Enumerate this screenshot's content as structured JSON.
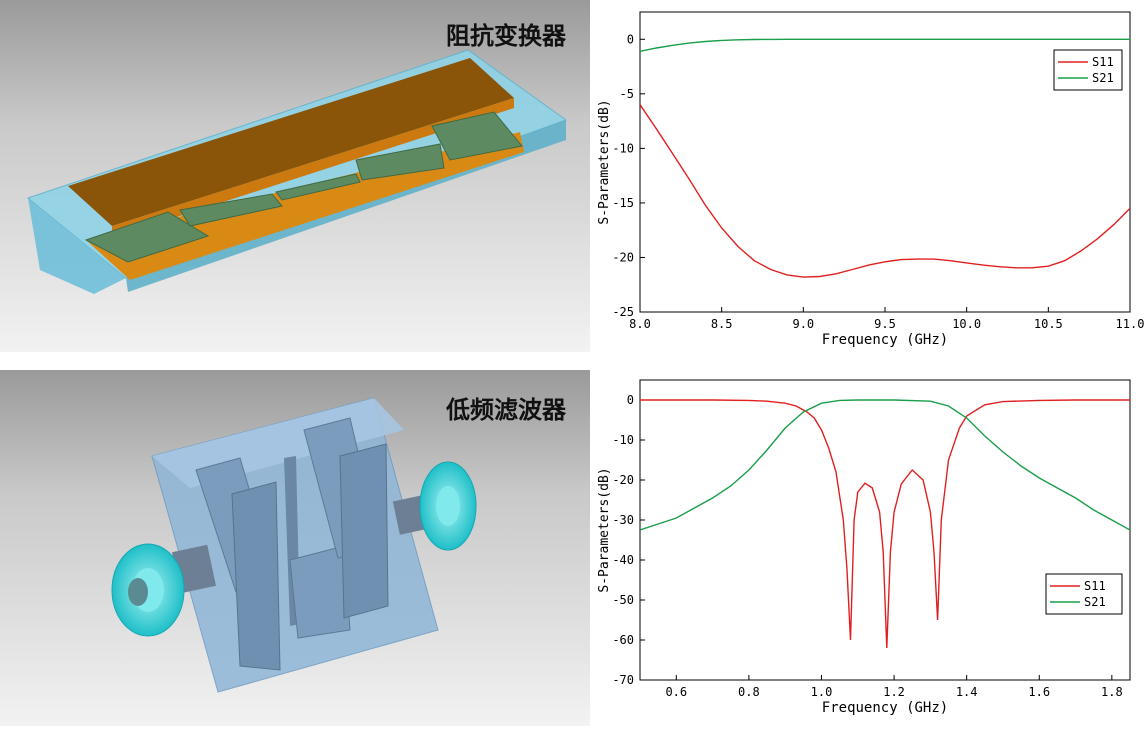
{
  "panels": {
    "top": {
      "title": "阻抗变换器"
    },
    "bottom": {
      "title": "低频滤波器"
    }
  },
  "chart_data": [
    {
      "type": "line",
      "xlabel": "Frequency (GHz)",
      "ylabel": "S-Parameters(dB)",
      "xlim": [
        8.0,
        11.0
      ],
      "ylim": [
        -25,
        2.5
      ],
      "xticks": [
        8.0,
        8.5,
        9.0,
        9.5,
        10.0,
        10.5,
        11.0
      ],
      "xtick_labels": [
        "8.0",
        "8.5",
        "9.0",
        "9.5",
        "10.0",
        "10.5",
        "11.0"
      ],
      "yticks": [
        0,
        -5,
        -10,
        -15,
        -20,
        -25
      ],
      "ytick_labels": [
        "0",
        "-5",
        "-10",
        "-15",
        "-20",
        "-25"
      ],
      "legend_position": "top-right",
      "grid": false,
      "series": [
        {
          "name": "S11",
          "color": "#e02020",
          "x": [
            8.0,
            8.1,
            8.2,
            8.3,
            8.4,
            8.5,
            8.6,
            8.7,
            8.8,
            8.9,
            9.0,
            9.1,
            9.2,
            9.3,
            9.4,
            9.5,
            9.6,
            9.7,
            9.8,
            9.9,
            10.0,
            10.1,
            10.2,
            10.3,
            10.4,
            10.5,
            10.6,
            10.7,
            10.8,
            10.9,
            11.0
          ],
          "y": [
            -6.0,
            -8.2,
            -10.5,
            -12.8,
            -15.2,
            -17.3,
            -19.0,
            -20.3,
            -21.1,
            -21.6,
            -21.8,
            -21.75,
            -21.5,
            -21.1,
            -20.7,
            -20.4,
            -20.2,
            -20.15,
            -20.15,
            -20.3,
            -20.5,
            -20.7,
            -20.85,
            -20.95,
            -20.95,
            -20.8,
            -20.3,
            -19.4,
            -18.3,
            -17.0,
            -15.5
          ]
        },
        {
          "name": "S21",
          "color": "#1a9e4a",
          "x": [
            8.0,
            8.1,
            8.2,
            8.3,
            8.4,
            8.5,
            8.6,
            8.7,
            8.8,
            8.9,
            9.0,
            9.5,
            10.0,
            10.5,
            11.0
          ],
          "y": [
            -1.1,
            -0.8,
            -0.55,
            -0.35,
            -0.2,
            -0.1,
            -0.05,
            -0.02,
            -0.01,
            0,
            0,
            0,
            0,
            0,
            0
          ]
        }
      ]
    },
    {
      "type": "line",
      "xlabel": "Frequency (GHz)",
      "ylabel": "S-Parameters(dB)",
      "xlim": [
        0.5,
        1.85
      ],
      "ylim": [
        -70,
        5
      ],
      "xticks": [
        0.6,
        0.8,
        1.0,
        1.2,
        1.4,
        1.6,
        1.8
      ],
      "xtick_labels": [
        "0.6",
        "0.8",
        "1.0",
        "1.2",
        "1.4",
        "1.6",
        "1.8"
      ],
      "yticks": [
        0,
        -10,
        -20,
        -30,
        -40,
        -50,
        -60,
        -70
      ],
      "ytick_labels": [
        "0",
        "-10",
        "-20",
        "-30",
        "-40",
        "-50",
        "-60",
        "-70"
      ],
      "legend_position": "bottom-right",
      "grid": false,
      "series": [
        {
          "name": "S11",
          "color": "#e02020",
          "x": [
            0.5,
            0.6,
            0.7,
            0.8,
            0.85,
            0.9,
            0.93,
            0.96,
            0.98,
            1.0,
            1.02,
            1.04,
            1.06,
            1.07,
            1.08,
            1.09,
            1.1,
            1.12,
            1.14,
            1.16,
            1.17,
            1.18,
            1.19,
            1.2,
            1.22,
            1.25,
            1.28,
            1.3,
            1.31,
            1.32,
            1.33,
            1.35,
            1.38,
            1.4,
            1.45,
            1.5,
            1.6,
            1.7,
            1.85
          ],
          "y": [
            0,
            0,
            0,
            -0.1,
            -0.3,
            -0.8,
            -1.5,
            -3.0,
            -4.5,
            -7.5,
            -12,
            -18,
            -30,
            -42,
            -60,
            -30,
            -23,
            -20.8,
            -22,
            -28,
            -38,
            -62,
            -38,
            -28,
            -21,
            -17.5,
            -20,
            -28,
            -38,
            -55,
            -30,
            -15,
            -7,
            -4,
            -1.2,
            -0.4,
            -0.1,
            0,
            0
          ]
        },
        {
          "name": "S21",
          "color": "#1a9e4a",
          "x": [
            0.5,
            0.55,
            0.6,
            0.65,
            0.7,
            0.75,
            0.8,
            0.85,
            0.9,
            0.95,
            1.0,
            1.05,
            1.1,
            1.2,
            1.3,
            1.35,
            1.4,
            1.45,
            1.5,
            1.55,
            1.6,
            1.65,
            1.7,
            1.75,
            1.8,
            1.85
          ],
          "y": [
            -32.5,
            -31,
            -29.5,
            -27,
            -24.5,
            -21.5,
            -17.5,
            -12.5,
            -7.0,
            -3.0,
            -0.8,
            -0.1,
            0,
            0,
            -0.3,
            -1.5,
            -4.5,
            -9,
            -13,
            -16.5,
            -19.5,
            -22,
            -24.5,
            -27.5,
            -30,
            -32.5
          ]
        }
      ]
    }
  ]
}
